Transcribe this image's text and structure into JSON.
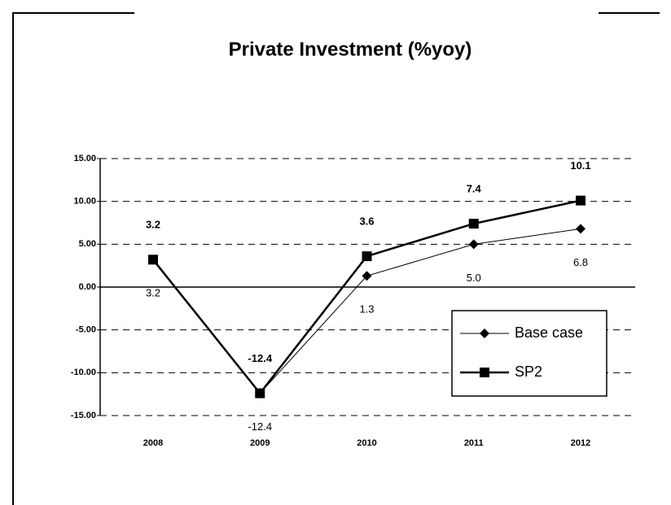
{
  "chart_data": {
    "type": "line",
    "title": "Private Investment (%yoy)",
    "categories": [
      "2008",
      "2009",
      "2010",
      "2011",
      "2012"
    ],
    "series": [
      {
        "name": "Base case",
        "color": "#000000",
        "marker": "diamond",
        "linewidth": 1,
        "label_position": "below",
        "values": [
          3.2,
          -12.4,
          1.3,
          5.0,
          6.8
        ],
        "value_labels": [
          "3.2",
          "-12.4",
          "1.3",
          "5.0",
          "6.8"
        ]
      },
      {
        "name": "SP2",
        "color": "#000000",
        "marker": "square",
        "linewidth": 2.5,
        "label_position": "above",
        "values": [
          3.2,
          -12.4,
          3.6,
          7.4,
          10.1
        ],
        "value_labels": [
          "3.2",
          "-12.4",
          "3.6",
          "7.4",
          "10.1"
        ]
      }
    ],
    "ylim": [
      -15,
      15
    ],
    "yticks": [
      {
        "value": 15,
        "label": "15.00"
      },
      {
        "value": 10,
        "label": "10.00"
      },
      {
        "value": 5,
        "label": "5.00"
      },
      {
        "value": 0,
        "label": "0.00"
      },
      {
        "value": -5,
        "label": "-5.00"
      },
      {
        "value": -10,
        "label": "-10.00"
      },
      {
        "value": -15,
        "label": "-15.00"
      }
    ],
    "grid": true,
    "legend": "lower right"
  }
}
